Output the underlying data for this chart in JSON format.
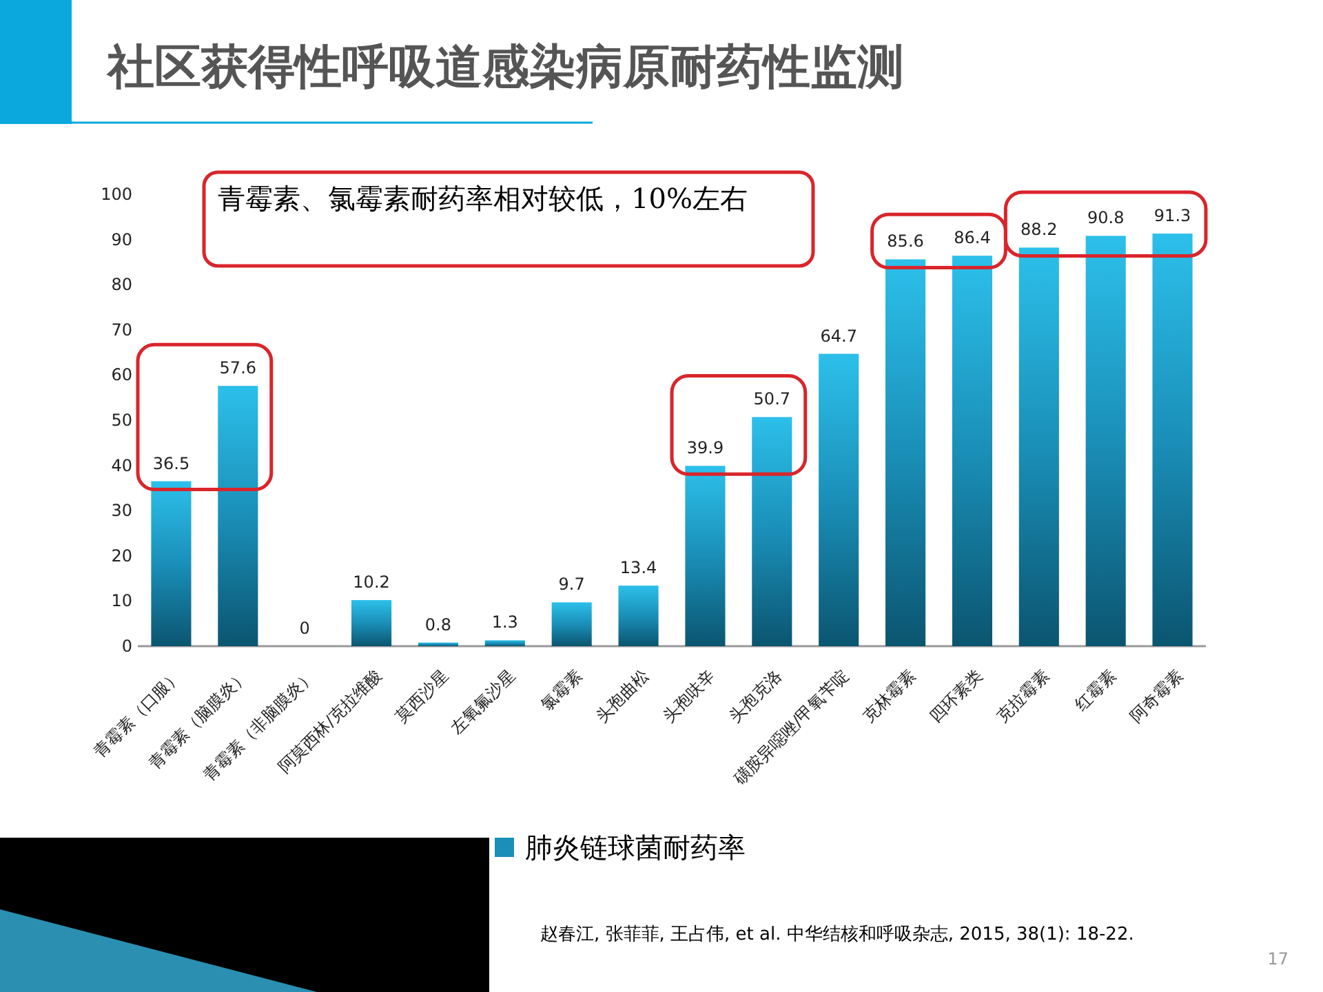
{
  "chart_data": {
    "type": "bar",
    "title": "社区获得性呼吸道感染病原耐药性监测",
    "categories": [
      "青霉素（口服）",
      "青霉素（脑膜炎）",
      "青霉素（非脑膜炎）",
      "阿莫西林/克拉维酸",
      "莫西沙星",
      "左氧氟沙星",
      "氯霉素",
      "头孢曲松",
      "头孢呋辛",
      "头孢克洛",
      "磺胺异噁唑/甲氧苄啶",
      "克林霉素",
      "四环素类",
      "克拉霉素",
      "红霉素",
      "阿奇霉素"
    ],
    "series": [
      {
        "name": "肺炎链球菌耐药率",
        "color": "#1a8fb8",
        "values": [
          36.5,
          57.6,
          0,
          10.2,
          0.8,
          1.3,
          9.7,
          13.4,
          39.9,
          50.7,
          64.7,
          85.6,
          86.4,
          88.2,
          90.8,
          91.3
        ]
      }
    ],
    "ylim": [
      0,
      100
    ],
    "yticks": [
      0,
      10,
      20,
      30,
      40,
      50,
      60,
      70,
      80,
      90,
      100
    ],
    "data_labels": true,
    "legend": "bottom",
    "grid": false,
    "annotations": [
      "青霉素、氯霉素耐药率相对较低，10%左右",
      "赵春江, 张菲菲, 王占伟, et al. 中华结核和呼吸杂志, 2015, 38(1): 18-22.",
      "17"
    ]
  }
}
